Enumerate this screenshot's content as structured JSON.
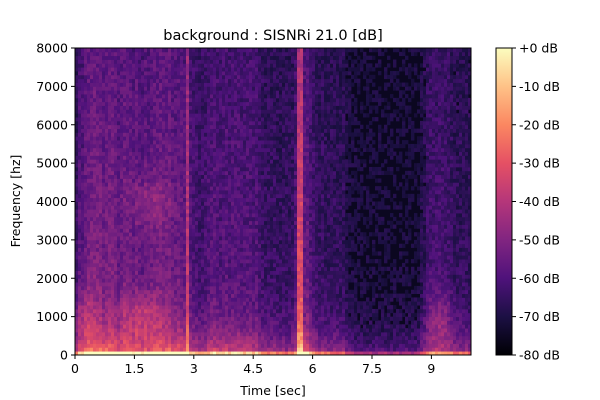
{
  "chart_data": {
    "type": "heatmap",
    "title": "background : SISNRi 21.0 [dB]",
    "xlabel": "Time [sec]",
    "ylabel": "Frequency [hz]",
    "xlim": [
      0,
      10
    ],
    "ylim": [
      0,
      8000
    ],
    "x_ticks": [
      0,
      1.5,
      3,
      4.5,
      6,
      7.5,
      9
    ],
    "x_tick_labels": [
      "0",
      "1.5",
      "3",
      "4.5",
      "6",
      "7.5",
      "9"
    ],
    "y_ticks": [
      0,
      1000,
      2000,
      3000,
      4000,
      5000,
      6000,
      7000,
      8000
    ],
    "y_tick_labels": [
      "0",
      "1000",
      "2000",
      "3000",
      "4000",
      "5000",
      "6000",
      "7000",
      "8000"
    ],
    "colorbar": {
      "range_db": [
        -80,
        0
      ],
      "ticks": [
        0,
        -10,
        -20,
        -30,
        -40,
        -50,
        -60,
        -70,
        -80
      ],
      "tick_labels": [
        "+0 dB",
        "-10 dB",
        "-20 dB",
        "-30 dB",
        "-40 dB",
        "-50 dB",
        "-60 dB",
        "-70 dB",
        "-80 dB"
      ],
      "colormap": "magma"
    }
  }
}
